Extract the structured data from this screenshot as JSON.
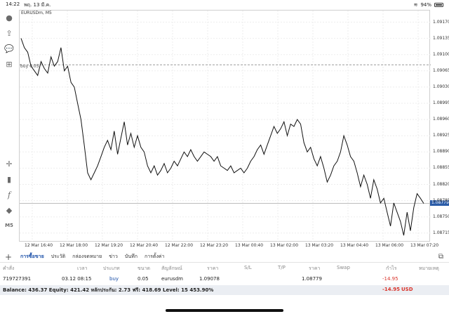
{
  "status": {
    "time": "14:22",
    "date": "พฤ. 13 มี.ค.",
    "battery": "94%"
  },
  "chart": {
    "symbol": "EURUSDm, M5",
    "buy_label": "buy 0.05",
    "current_price": "1.08779",
    "price_ticks": [
      "1.09170",
      "1.09135",
      "1.09100",
      "1.09065",
      "1.09030",
      "1.08995",
      "1.08960",
      "1.08925",
      "1.08890",
      "1.08855",
      "1.08820",
      "1.08785",
      "1.08750",
      "1.08715"
    ],
    "time_ticks": [
      "12 Mar 16:40",
      "12 Mar 18:00",
      "12 Mar 19:20",
      "12 Mar 20:40",
      "12 Mar 22:00",
      "12 Mar 23:20",
      "13 Mar 00:40",
      "13 Mar 02:00",
      "13 Mar 03:20",
      "13 Mar 04:40",
      "13 Mar 06:00",
      "13 Mar 07:20"
    ]
  },
  "chart_data": {
    "type": "line",
    "ylim": [
      1.08695,
      1.09195
    ],
    "buy_level": 1.09078,
    "current_level": 1.08779,
    "series": [
      {
        "values": [
          1.09135,
          1.09115,
          1.09105,
          1.09075,
          1.09065,
          1.09055,
          1.09085,
          1.0907,
          1.0906,
          1.09095,
          1.09075,
          1.09085,
          1.09115,
          1.09065,
          1.09075,
          1.0904,
          1.0903,
          1.08995,
          1.0896,
          1.08905,
          1.08845,
          1.0883,
          1.08845,
          1.0886,
          1.0888,
          1.089,
          1.08915,
          1.08895,
          1.08935,
          1.08885,
          1.0892,
          1.08955,
          1.08905,
          1.0893,
          1.089,
          1.08925,
          1.089,
          1.0889,
          1.0886,
          1.08845,
          1.0886,
          1.0884,
          1.0885,
          1.08865,
          1.08845,
          1.08855,
          1.0887,
          1.0886,
          1.08875,
          1.0889,
          1.0888,
          1.08895,
          1.0888,
          1.0887,
          1.0888,
          1.0889,
          1.08885,
          1.0888,
          1.0887,
          1.0888,
          1.0886,
          1.08855,
          1.0885,
          1.0886,
          1.08845,
          1.0885,
          1.08855,
          1.08845,
          1.08855,
          1.0887,
          1.0888,
          1.08895,
          1.08905,
          1.08885,
          1.08905,
          1.08925,
          1.08945,
          1.0893,
          1.0894,
          1.08955,
          1.08925,
          1.0895,
          1.08945,
          1.0896,
          1.0895,
          1.0891,
          1.0889,
          1.089,
          1.08875,
          1.0886,
          1.0888,
          1.08855,
          1.08825,
          1.0884,
          1.0886,
          1.0887,
          1.0889,
          1.08925,
          1.08905,
          1.0888,
          1.0887,
          1.08845,
          1.08815,
          1.0884,
          1.0882,
          1.0879,
          1.0883,
          1.0881,
          1.0878,
          1.0879,
          1.0876,
          1.0873,
          1.0878,
          1.0876,
          1.0874,
          1.0871,
          1.0876,
          1.0872,
          1.0877,
          1.088,
          1.0879,
          1.08779
        ]
      }
    ]
  },
  "tabs": [
    "การซื้อขาย",
    "ประวัติ",
    "กล่องจดหมาย",
    "ข่าว",
    "บันทึก",
    "การตั้งค่า"
  ],
  "columns": [
    "คำสั่ง",
    "เวลา",
    "ประเภท",
    "ขนาด",
    "สัญลักษณ์",
    "ราคา",
    "S/L",
    "T/P",
    "ราคา",
    "Swap",
    "กำไร",
    "หมายเหตุ"
  ],
  "order": {
    "id": "719727391",
    "time": "03.12 08:15",
    "type": "buy",
    "size": "0.05",
    "symbol": "eurusdm",
    "open_price": "1.09078",
    "price": "1.08779",
    "profit": "-14.95"
  },
  "balance": {
    "text": "Balance: 436.37 Equity: 421.42 หลักประกัน: 2.73 ฟรี: 418.69 Level: 15 453.90%",
    "profit": "-14.95",
    "currency": "USD"
  },
  "colors": {
    "accent": "#1a4fa8",
    "loss": "#d9342b",
    "price_tag": "#2b5ca8"
  }
}
